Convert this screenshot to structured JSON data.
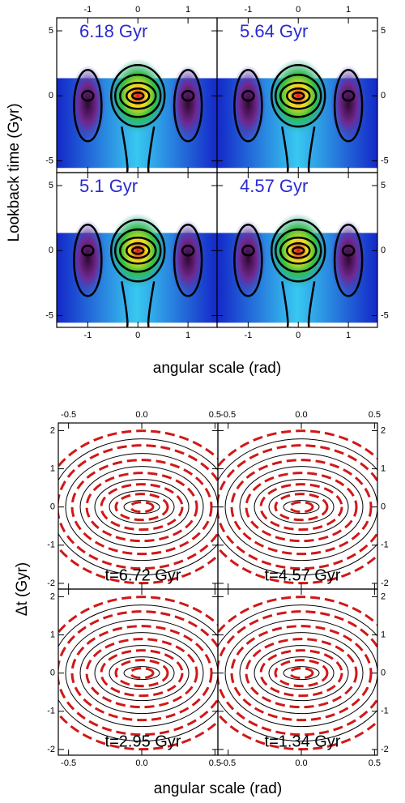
{
  "chart_data": [
    {
      "type": "heatmap",
      "xlabel": "angular scale (rad)",
      "ylabel": "Lookback time (Gyr)",
      "xlim": [
        -1.62,
        1.58
      ],
      "xticks": [
        -1,
        0,
        1
      ],
      "ylim": [
        -5.9,
        6
      ],
      "yticks": [
        -5,
        0,
        5
      ],
      "panel_label_color": "#2a2ad0",
      "panels": [
        {
          "label": "6.18 Gyr"
        },
        {
          "label": "5.64 Gyr"
        },
        {
          "label": "5.1 Gyr"
        },
        {
          "label": "4.57 Gyr"
        }
      ]
    },
    {
      "type": "contour",
      "xlabel": "angular scale (rad)",
      "ylabel": "Δt (Gyr)",
      "xlim": [
        -0.57,
        0.52
      ],
      "xticks": [
        -0.5,
        {
          "value": 0,
          "label": "0.0"
        },
        0.5
      ],
      "ylim": [
        -2.15,
        2.2
      ],
      "yticks": [
        -2,
        -1,
        0,
        1,
        2
      ],
      "panel_label_color": "#000000",
      "panels": [
        {
          "label": "t=6.72 Gyr"
        },
        {
          "label": "t=4.57 Gyr"
        },
        {
          "label": "t=2.95 Gyr"
        },
        {
          "label": "t=1.34 Gyr"
        }
      ]
    }
  ]
}
